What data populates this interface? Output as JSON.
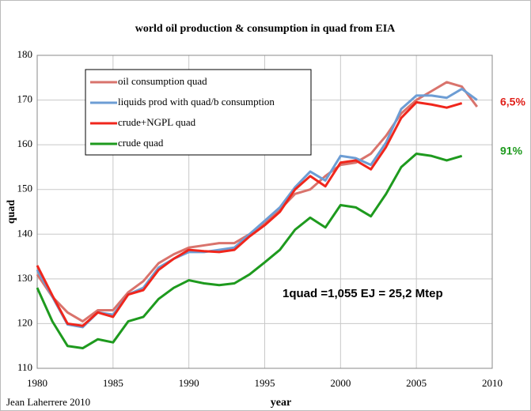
{
  "chart_data": {
    "type": "line",
    "title": "world oil production & consumption in quad from EIA",
    "x_label": "year",
    "y_label": "quad",
    "x": [
      1980,
      1981,
      1982,
      1983,
      1984,
      1985,
      1986,
      1987,
      1988,
      1989,
      1990,
      1991,
      1992,
      1993,
      1994,
      1995,
      1996,
      1997,
      1998,
      1999,
      2000,
      2001,
      2002,
      2003,
      2004,
      2005,
      2006,
      2007,
      2008,
      2009
    ],
    "series": [
      {
        "name": "oil consumption quad",
        "color": "#d9736c",
        "values": [
          131,
          126,
          122.5,
          120.5,
          123,
          123,
          127,
          129.5,
          133.5,
          135.5,
          137,
          137.5,
          138,
          138,
          140,
          142.5,
          145.5,
          149,
          150,
          153,
          155.5,
          156,
          158,
          162,
          167,
          170,
          172,
          174,
          173,
          168.5
        ]
      },
      {
        "name": "liquids prod with quad/b consumption",
        "color": "#6d9dd4",
        "values": [
          132,
          126,
          119.8,
          119.2,
          122.5,
          122,
          126.5,
          128,
          132.5,
          134.5,
          136,
          136,
          136.5,
          137,
          140,
          143,
          146,
          150.5,
          154,
          152,
          157.5,
          157,
          155.5,
          160.5,
          168,
          171,
          171,
          170.5,
          172.5,
          170
        ]
      },
      {
        "name": "crude+NGPL quad",
        "color": "#f0261c",
        "values": [
          133,
          126.3,
          120,
          119.5,
          122.5,
          121.5,
          126.5,
          127.5,
          132,
          134.5,
          136.5,
          136.2,
          136,
          136.5,
          139.5,
          142,
          145,
          150,
          153,
          150.7,
          156,
          156.5,
          154.5,
          159.5,
          166,
          169.5,
          169,
          168.3,
          169.3,
          null
        ]
      },
      {
        "name": "crude quad",
        "color": "#1e9a1e",
        "values": [
          128,
          120.5,
          115,
          114.5,
          116.5,
          115.8,
          120.5,
          121.5,
          125.5,
          128,
          129.7,
          129,
          128.6,
          129,
          131,
          133.7,
          136.5,
          141,
          143.7,
          141.5,
          146.5,
          146,
          144,
          149,
          155,
          158,
          157.5,
          156.5,
          157.5,
          null
        ]
      }
    ],
    "xlim": [
      1980,
      2010
    ],
    "xticks": [
      1980,
      1985,
      1990,
      1995,
      2000,
      2005,
      2010
    ],
    "ylim": [
      110,
      180
    ],
    "yticks": [
      110,
      120,
      130,
      140,
      150,
      160,
      170,
      180
    ],
    "grid": true,
    "annotations": [
      {
        "text": "6,5%",
        "color": "#e0201a"
      },
      {
        "text": "91%",
        "color": "#1e9a1e"
      },
      {
        "text": "1quad  =1,055 EJ = 25,2 Mtep",
        "color": "#000000"
      },
      {
        "text": "Jean Laherrere 2010",
        "color": "#000000"
      }
    ]
  }
}
